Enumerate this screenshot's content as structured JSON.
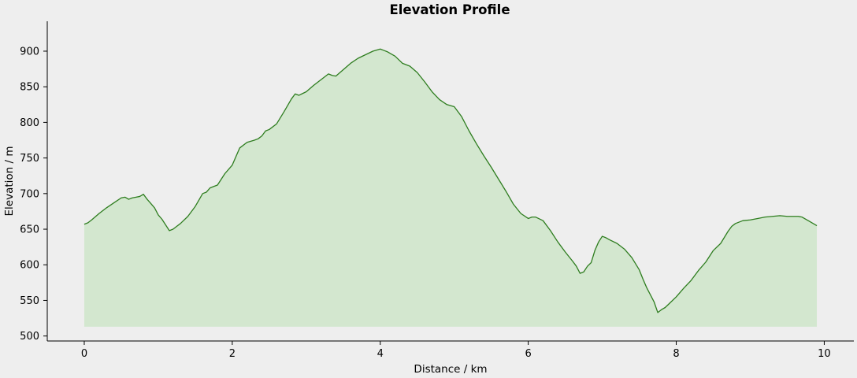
{
  "chart_data": {
    "type": "area",
    "title": "Elevation Profile",
    "xlabel": "Distance / km",
    "ylabel": "Elevation / m",
    "xlim": [
      -0.5,
      10.4
    ],
    "ylim": [
      493,
      942
    ],
    "xticks": [
      0,
      2,
      4,
      6,
      8,
      10
    ],
    "yticks": [
      500,
      550,
      600,
      650,
      700,
      750,
      800,
      850,
      900
    ],
    "fill_base": 513,
    "grid": false,
    "colors": {
      "line": "#2e7d1f",
      "fill": "#d3e7cf",
      "background": "#eeeeee"
    },
    "series": [
      {
        "x": [
          0,
          0.05,
          0.1,
          0.2,
          0.3,
          0.4,
          0.5,
          0.55,
          0.6,
          0.65,
          0.7,
          0.75,
          0.8,
          0.85,
          0.9,
          0.95,
          1.0,
          1.05,
          1.1,
          1.15,
          1.2,
          1.25,
          1.3,
          1.4,
          1.5,
          1.6,
          1.65,
          1.7,
          1.75,
          1.8,
          1.9,
          2.0,
          2.05,
          2.1,
          2.2,
          2.3,
          2.35,
          2.4,
          2.45,
          2.5,
          2.6,
          2.7,
          2.8,
          2.85,
          2.9,
          3.0,
          3.1,
          3.2,
          3.3,
          3.35,
          3.4,
          3.5,
          3.6,
          3.7,
          3.8,
          3.9,
          4.0,
          4.05,
          4.1,
          4.2,
          4.3,
          4.4,
          4.5,
          4.6,
          4.7,
          4.8,
          4.9,
          5.0,
          5.1,
          5.2,
          5.3,
          5.4,
          5.5,
          5.6,
          5.7,
          5.8,
          5.9,
          6.0,
          6.05,
          6.1,
          6.2,
          6.3,
          6.4,
          6.5,
          6.6,
          6.65,
          6.7,
          6.75,
          6.8,
          6.85,
          6.9,
          6.95,
          7.0,
          7.05,
          7.1,
          7.2,
          7.3,
          7.4,
          7.5,
          7.55,
          7.6,
          7.7,
          7.75,
          7.8,
          7.85,
          7.9,
          8.0,
          8.1,
          8.2,
          8.3,
          8.4,
          8.5,
          8.6,
          8.7,
          8.75,
          8.8,
          8.9,
          9.0,
          9.1,
          9.2,
          9.3,
          9.4,
          9.5,
          9.6,
          9.65,
          9.7,
          9.8,
          9.9
        ],
        "y": [
          657,
          659,
          663,
          672,
          680,
          687,
          694,
          695,
          692,
          694,
          695,
          696,
          699,
          692,
          686,
          680,
          670,
          664,
          656,
          648,
          650,
          654,
          658,
          668,
          682,
          700,
          702,
          708,
          710,
          712,
          728,
          740,
          752,
          764,
          772,
          775,
          777,
          781,
          788,
          790,
          798,
          815,
          833,
          840,
          838,
          843,
          852,
          860,
          868,
          866,
          865,
          874,
          883,
          890,
          895,
          900,
          903,
          901,
          899,
          893,
          883,
          879,
          870,
          857,
          843,
          832,
          825,
          822,
          808,
          788,
          770,
          753,
          737,
          720,
          703,
          685,
          672,
          665,
          667,
          667,
          662,
          648,
          632,
          618,
          605,
          598,
          588,
          590,
          598,
          603,
          620,
          632,
          640,
          638,
          635,
          630,
          622,
          610,
          593,
          580,
          568,
          548,
          533,
          537,
          540,
          545,
          555,
          567,
          578,
          592,
          604,
          620,
          630,
          647,
          654,
          658,
          662,
          663,
          665,
          667,
          668,
          669,
          668,
          668,
          668,
          667,
          661,
          655
        ]
      }
    ]
  }
}
